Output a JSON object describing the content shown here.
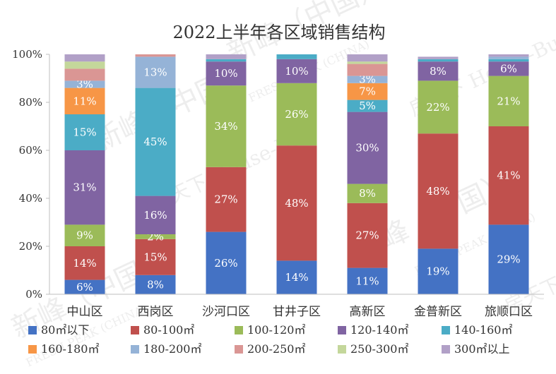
{
  "chart_data": {
    "type": "stacked_bar_percent",
    "title": "2022上半年各区域销售结构",
    "ylim": [
      0,
      100
    ],
    "y_ticks": [
      "0%",
      "20%",
      "40%",
      "60%",
      "80%",
      "100%"
    ],
    "categories": [
      "中山区",
      "西岗区",
      "沙河口区",
      "甘井子区",
      "高新区",
      "金普新区",
      "旅顺口区"
    ],
    "series": [
      {
        "name": "80㎡以下",
        "color": "#4472C4",
        "values": [
          6,
          8,
          26,
          14,
          11,
          19,
          29
        ],
        "labels": [
          "6%",
          "8%",
          "26%",
          "14%",
          "11%",
          "19%",
          "29%"
        ]
      },
      {
        "name": "80-100㎡",
        "color": "#C0504D",
        "values": [
          14,
          15,
          27,
          48,
          27,
          48,
          41
        ],
        "labels": [
          "14%",
          "15%",
          "27%",
          "48%",
          "27%",
          "48%",
          "41%"
        ]
      },
      {
        "name": "100-120㎡",
        "color": "#9BBB59",
        "values": [
          9,
          2,
          34,
          26,
          8,
          22,
          21
        ],
        "labels": [
          "9%",
          "2%",
          "34%",
          "26%",
          "8%",
          "22%",
          "21%"
        ]
      },
      {
        "name": "120-140㎡",
        "color": "#8064A2",
        "values": [
          31,
          16,
          10,
          10,
          30,
          8,
          6
        ],
        "labels": [
          "31%",
          "16%",
          "10%",
          "10%",
          "30%",
          "8%",
          "6%"
        ]
      },
      {
        "name": "140-160㎡",
        "color": "#4BACC6",
        "values": [
          15,
          45,
          1,
          2,
          5,
          1,
          1
        ],
        "labels": [
          "15%",
          "45%",
          "",
          "",
          "5%",
          "",
          ""
        ]
      },
      {
        "name": "160-180㎡",
        "color": "#F79646",
        "values": [
          11,
          0,
          0,
          0,
          7,
          0,
          0
        ],
        "labels": [
          "11%",
          "",
          "",
          "",
          "7%",
          "",
          ""
        ]
      },
      {
        "name": "180-200㎡",
        "color": "#95B3D7",
        "values": [
          3,
          13,
          0,
          0,
          3,
          0,
          1
        ],
        "labels": [
          "3%",
          "13%",
          "",
          "",
          "3%",
          "",
          ""
        ]
      },
      {
        "name": "200-250㎡",
        "color": "#DA9694",
        "values": [
          5,
          1,
          0,
          0,
          5,
          0,
          0
        ],
        "labels": [
          "",
          "",
          "",
          "",
          "",
          "",
          ""
        ]
      },
      {
        "name": "250-300㎡",
        "color": "#C4D79B",
        "values": [
          3,
          0,
          0,
          0,
          1,
          0,
          0
        ],
        "labels": [
          "",
          "",
          "",
          "",
          "",
          "",
          ""
        ]
      },
      {
        "name": "300㎡以上",
        "color": "#B1A0C7",
        "values": [
          3,
          0,
          2,
          0,
          3,
          1,
          1
        ],
        "labels": [
          "",
          "",
          "",
          "",
          "",
          "",
          ""
        ]
      }
    ]
  },
  "watermark": {
    "brand_cn": "新峰（中国）",
    "brand_en": "FRESH PEAK (CHINA)",
    "partner": "房天下 House-Bus"
  }
}
